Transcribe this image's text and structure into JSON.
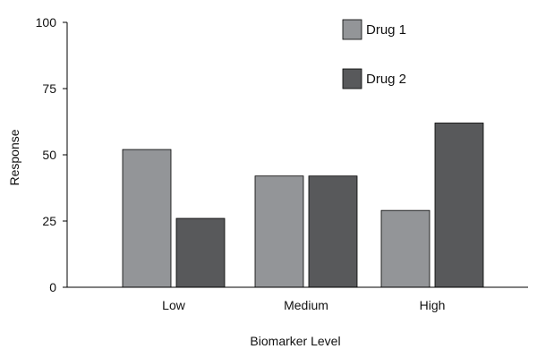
{
  "chart_data": {
    "type": "bar",
    "title": "",
    "xlabel": "Biomarker Level",
    "ylabel": "Response",
    "categories": [
      "Low",
      "Medium",
      "High"
    ],
    "ylim": [
      0,
      100
    ],
    "yticks": [
      0,
      25,
      50,
      75,
      100
    ],
    "grid": false,
    "legend_position": "top-right",
    "series": [
      {
        "name": "Drug 1",
        "values": [
          52,
          42,
          29
        ],
        "color": "#939598"
      },
      {
        "name": "Drug 2",
        "values": [
          26,
          42,
          62
        ],
        "color": "#58595b"
      }
    ]
  }
}
